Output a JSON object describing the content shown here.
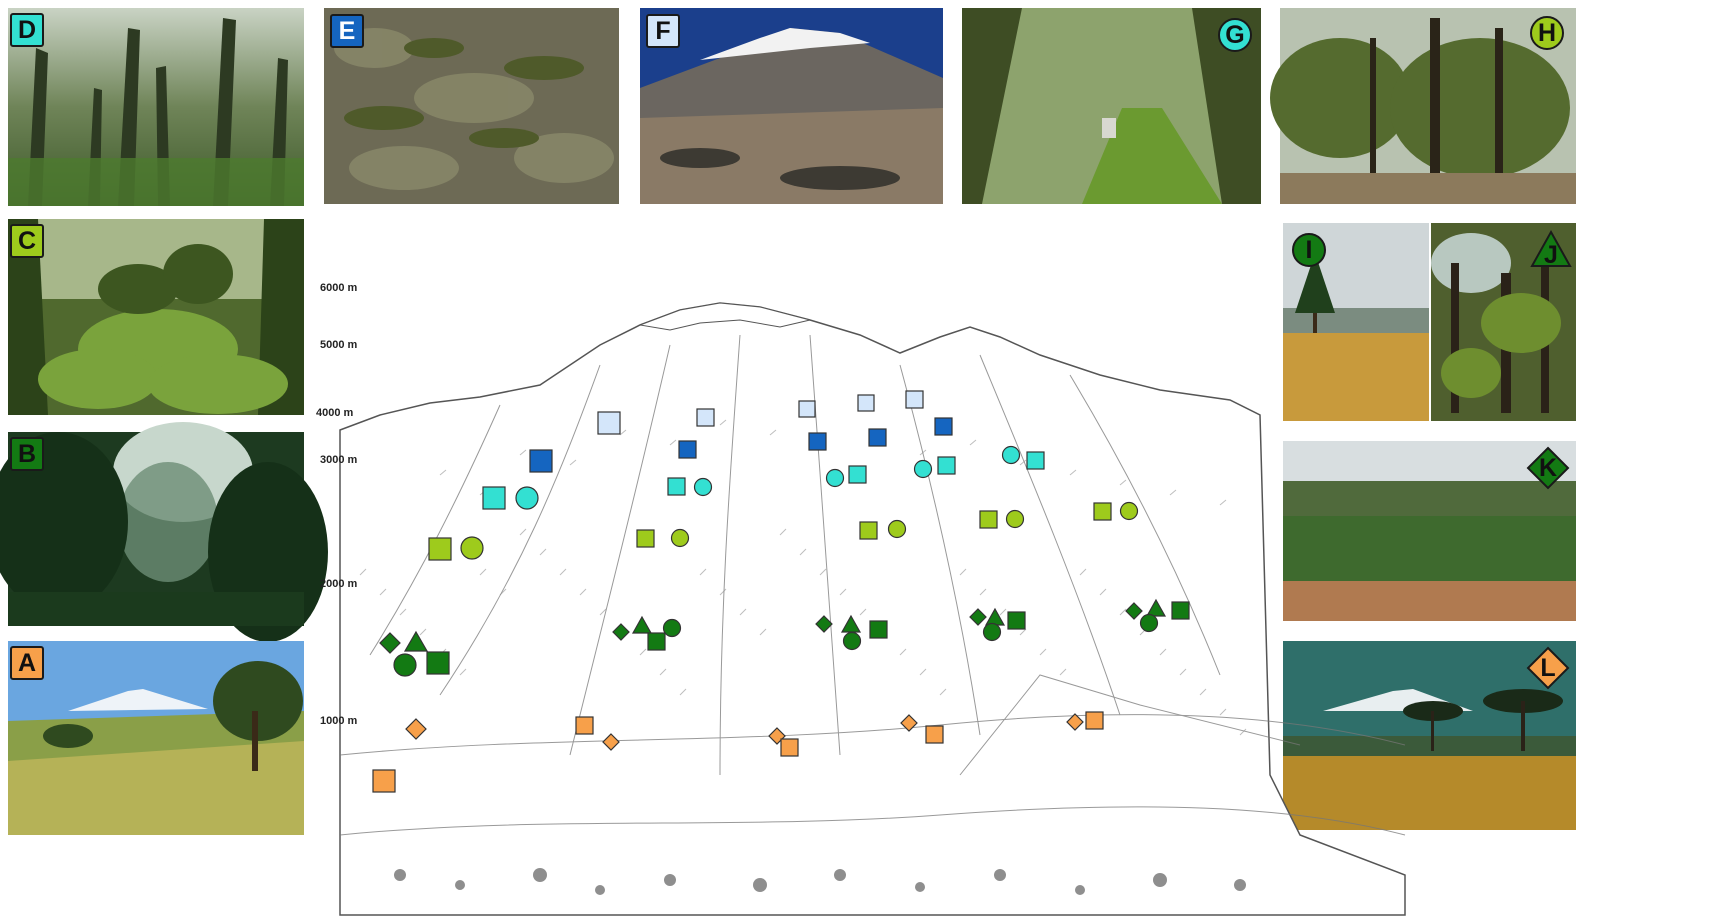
{
  "colors": {
    "palest_blue": "#d4e6fa",
    "dark_blue": "#1565c0",
    "turquoise": "#33e0d2",
    "lime_green": "#9ecb1c",
    "dark_green": "#137a13",
    "orange": "#f7a04a"
  },
  "photos": [
    {
      "label": "A",
      "marker": "orange-square",
      "color": "#f7a04a",
      "scene": "savanna grassland with trees and Kilimanjaro"
    },
    {
      "label": "B",
      "marker": "dark-green-square",
      "color": "#137a13",
      "scene": "misty lowland montane forest valley"
    },
    {
      "label": "C",
      "marker": "lime-square",
      "color": "#9ecb1c",
      "scene": "dense montane forest with tree ferns"
    },
    {
      "label": "D",
      "marker": "turquoise-square",
      "color": "#33e0d2",
      "scene": "upper montane forest with mossy trees"
    },
    {
      "label": "E",
      "marker": "dark-blue-square",
      "color": "#1565c0",
      "scene": "ericaceous heath shrub cover"
    },
    {
      "label": "F",
      "marker": "pale-blue-square",
      "color": "#d4e6fa",
      "scene": "alpine desert below Kibo peak"
    },
    {
      "label": "G",
      "marker": "turquoise-circle",
      "color": "#33e0d2",
      "scene": "disturbed forest trail with lichen-draped trees"
    },
    {
      "label": "H",
      "marker": "lime-circle",
      "color": "#9ecb1c",
      "scene": "logged forest with slender trunks"
    },
    {
      "label": "I",
      "marker": "dark-green-circle",
      "color": "#137a13",
      "scene": "grassland with a single conifer"
    },
    {
      "label": "J",
      "marker": "dark-green-triangle",
      "color": "#137a13",
      "scene": "chagga homegarden with banana plants"
    },
    {
      "label": "K",
      "marker": "dark-green-diamond",
      "color": "#137a13",
      "scene": "coffee plantation"
    },
    {
      "label": "L",
      "marker": "orange-diamond",
      "color": "#f7a04a",
      "scene": "maize field with acacia trees and Kilimanjaro"
    }
  ],
  "diagram": {
    "altitude_labels": [
      "6000 m",
      "5000 m",
      "4000 m",
      "3000 m",
      "2000 m",
      "1000 m"
    ],
    "altitudes_m": [
      6000,
      5000,
      4000,
      3000,
      2000,
      1000
    ]
  }
}
